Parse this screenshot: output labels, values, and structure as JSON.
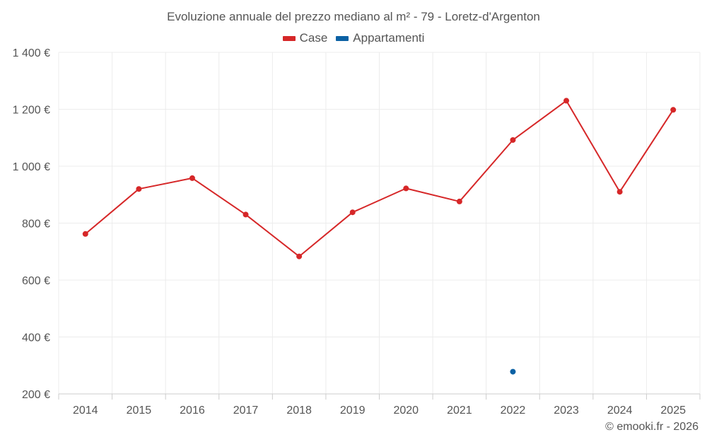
{
  "chart_data": {
    "type": "line",
    "title": "Evoluzione annuale del prezzo mediano al m² - 79 - Loretz-d'Argenton",
    "categories": [
      "2014",
      "2015",
      "2016",
      "2017",
      "2018",
      "2019",
      "2020",
      "2021",
      "2022",
      "2023",
      "2024",
      "2025"
    ],
    "series": [
      {
        "name": "Case",
        "color": "#d62728",
        "values": [
          762,
          920,
          958,
          830,
          683,
          838,
          922,
          876,
          1092,
          1230,
          910,
          1198
        ]
      },
      {
        "name": "Appartamenti",
        "color": "#0b61a4",
        "values": [
          null,
          null,
          null,
          null,
          null,
          null,
          null,
          null,
          278,
          null,
          null,
          null
        ]
      }
    ],
    "ylim": [
      200,
      1400
    ],
    "yticks": [
      200,
      400,
      600,
      800,
      1000,
      1200,
      1400
    ],
    "ytick_labels": [
      "200 €",
      "400 €",
      "600 €",
      "800 €",
      "1 000 €",
      "1 200 €",
      "1 400 €"
    ],
    "xlabel": "",
    "ylabel": "",
    "grid": true,
    "legend_position": "top-center"
  },
  "legend": {
    "items": [
      {
        "label": "Case",
        "color": "#d62728"
      },
      {
        "label": "Appartamenti",
        "color": "#0b61a4"
      }
    ]
  },
  "credit": "© emooki.fr - 2026"
}
